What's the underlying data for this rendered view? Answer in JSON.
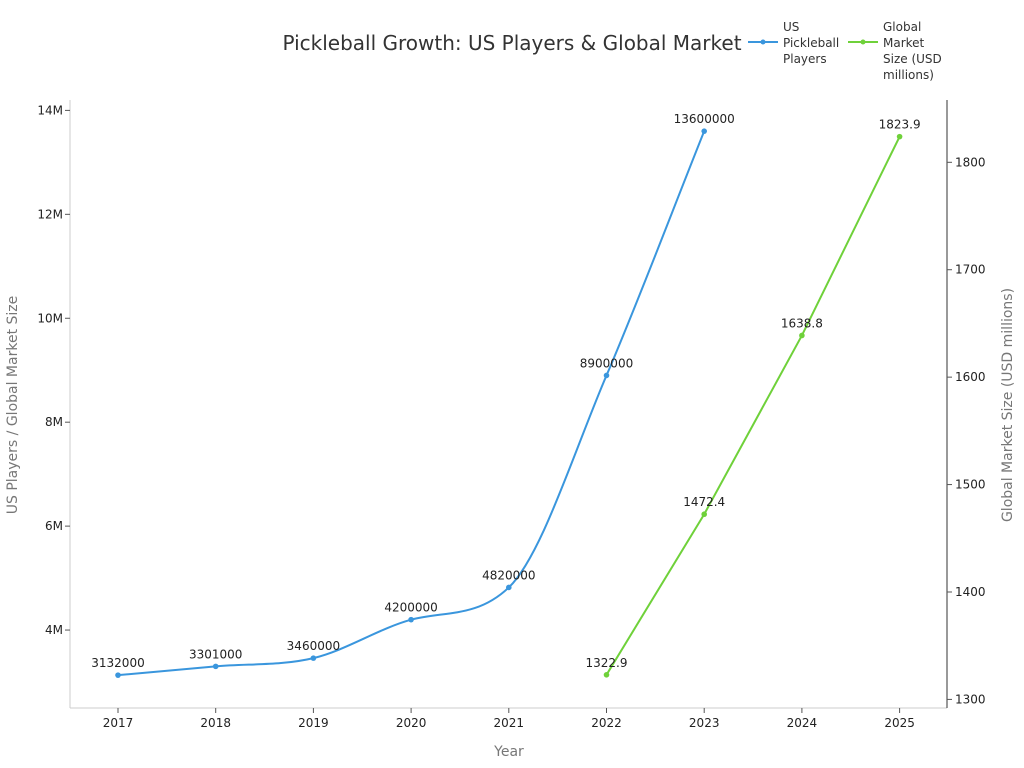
{
  "chart_data": {
    "type": "line",
    "title": "Pickleball Growth: US Players & Global Market",
    "xlabel": "Year",
    "ylabel_left": "US Players / Global Market Size",
    "ylabel_right": "Global Market Size (USD millions)",
    "categories": [
      "2017",
      "2018",
      "2019",
      "2020",
      "2021",
      "2022",
      "2023",
      "2024",
      "2025"
    ],
    "y_left": {
      "lim": [
        2500000,
        14200000
      ],
      "ticks": [
        4000000,
        6000000,
        8000000,
        10000000,
        12000000,
        14000000
      ],
      "tick_labels": [
        "4M",
        "6M",
        "8M",
        "10M",
        "12M",
        "14M"
      ]
    },
    "y_right": {
      "lim": [
        1292,
        1858
      ],
      "ticks": [
        1300,
        1400,
        1500,
        1600,
        1700,
        1800
      ],
      "tick_labels": [
        "1300",
        "1400",
        "1500",
        "1600",
        "1700",
        "1800"
      ]
    },
    "series": [
      {
        "name": "US Pickleball Players",
        "axis": "left",
        "color": "#3a96dd",
        "smooth": true,
        "x": [
          "2017",
          "2018",
          "2019",
          "2020",
          "2021",
          "2022",
          "2023"
        ],
        "values": [
          3132000,
          3301000,
          3460000,
          4200000,
          4820000,
          8900000,
          13600000
        ],
        "labels": [
          "3132000",
          "3301000",
          "3460000",
          "4200000",
          "4820000",
          "8900000",
          "13600000"
        ]
      },
      {
        "name": "Global Market Size (USD millions)",
        "axis": "right",
        "color": "#6fd13a",
        "smooth": false,
        "x": [
          "2022",
          "2023",
          "2024",
          "2025"
        ],
        "values": [
          1322.9,
          1472.4,
          1638.8,
          1823.9
        ],
        "labels": [
          "1322.9",
          "1472.4",
          "1638.8",
          "1823.9"
        ]
      }
    ],
    "legend": {
      "position": "top-right",
      "entries": [
        {
          "lines": [
            "US",
            "Pickleball",
            "Players"
          ],
          "color": "#3a96dd"
        },
        {
          "lines": [
            "Global",
            "Market",
            "Size (USD",
            "millions)"
          ],
          "color": "#6fd13a"
        }
      ]
    },
    "grid": false
  }
}
